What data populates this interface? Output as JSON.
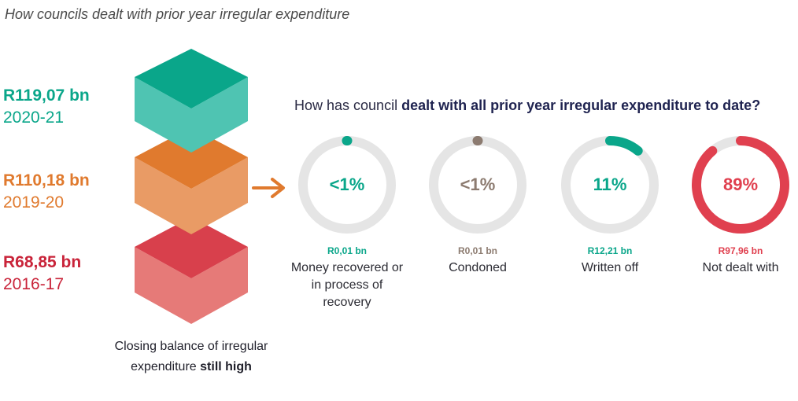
{
  "title": "How councils dealt with prior year irregular expenditure",
  "balances": [
    {
      "amount": "R119,07 bn",
      "year": "2020-21",
      "color": "#0aa68a"
    },
    {
      "amount": "R110,18 bn",
      "year": "2019-20",
      "color": "#e07a2e"
    },
    {
      "amount": "R68,85 bn",
      "year": "2016-17",
      "color": "#c9243a"
    }
  ],
  "footnote": {
    "text": "Closing balance of irregular expenditure",
    "bold": "still high"
  },
  "question": {
    "prefix": "How has council",
    "bold": "dealt with all prior year irregular expenditure to date?"
  },
  "chart_data": {
    "type": "pie",
    "title": "How has council dealt with all prior year irregular expenditure to date?",
    "categories": [
      "Money recovered or in process of recovery",
      "Condoned",
      "Written off",
      "Not dealt with"
    ],
    "series": [
      {
        "values_pct": [
          0.5,
          0.5,
          11,
          89
        ],
        "labels": [
          "<1%",
          "<1%",
          "11%",
          "89%"
        ],
        "amounts": [
          "R0,01 bn",
          "R0,01 bn",
          "R12,21 bn",
          "R97,96 bn"
        ]
      }
    ],
    "colors": [
      "#0aa68a",
      "#8c7b70",
      "#0aa68a",
      "#e0404f"
    ]
  },
  "donuts": [
    {
      "pct_label": "<1%",
      "amount": "R0,01 bn",
      "desc": "Money recovered or in process of recovery",
      "value": 0.5,
      "color": "#0aa68a"
    },
    {
      "pct_label": "<1%",
      "amount": "R0,01 bn",
      "desc": "Condoned",
      "value": 0.5,
      "color": "#8c7b70"
    },
    {
      "pct_label": "11%",
      "amount": "R12,21 bn",
      "desc": "Written off",
      "value": 11,
      "color": "#0aa68a"
    },
    {
      "pct_label": "89%",
      "amount": "R97,96 bn",
      "desc": "Not dealt with",
      "value": 89,
      "color": "#e0404f"
    }
  ]
}
